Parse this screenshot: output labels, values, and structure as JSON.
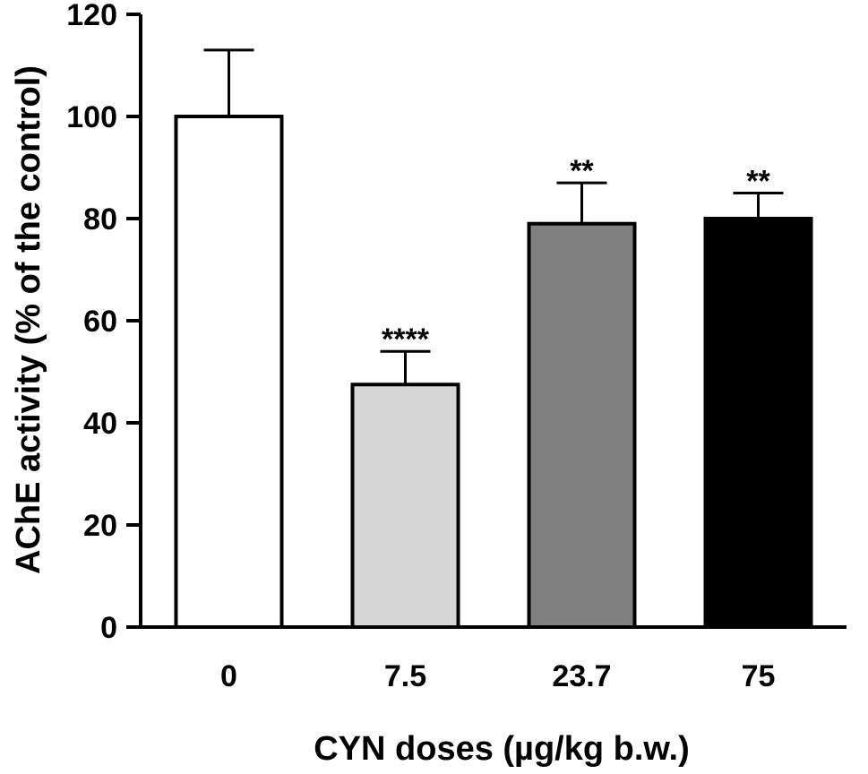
{
  "chart_data": {
    "type": "bar",
    "categories": [
      "0",
      "7.5",
      "23.7",
      "75"
    ],
    "values": [
      100,
      47.5,
      79,
      80
    ],
    "errors": [
      13,
      6.5,
      8,
      5
    ],
    "significance": [
      "",
      "****",
      "**",
      "**"
    ],
    "bar_colors": [
      "#ffffff",
      "#d6d6d6",
      "#808080",
      "#000000"
    ],
    "xlabel": "CYN doses (µg/kg b.w.)",
    "ylabel": "AChE activity (% of the control)",
    "ylim": [
      0,
      120
    ],
    "yticks": [
      0,
      20,
      40,
      60,
      80,
      100,
      120
    ],
    "grid": false,
    "legend": "none"
  }
}
